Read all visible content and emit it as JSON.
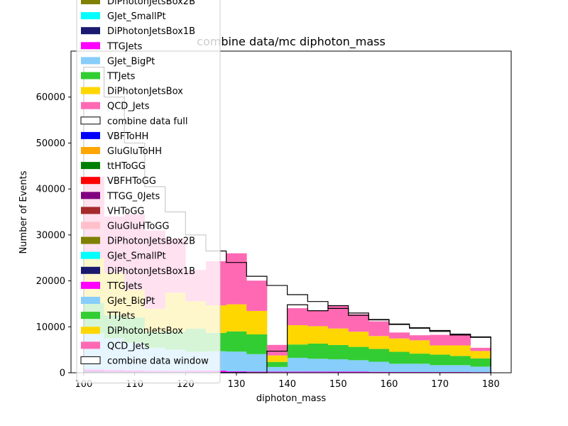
{
  "chart_data": {
    "type": "bar",
    "stacked": true,
    "title": "combine data/mc diphoton_mass",
    "xlabel": "diphoton_mass",
    "ylabel": "Number of Events",
    "xlim": [
      97.5,
      184.0
    ],
    "ylim": [
      0,
      70000
    ],
    "xticks": [
      100,
      110,
      120,
      130,
      140,
      150,
      160,
      170,
      180
    ],
    "yticks": [
      0,
      10000,
      20000,
      30000,
      40000,
      50000,
      60000
    ],
    "bins": [
      100,
      104,
      108,
      112,
      116,
      120,
      124,
      128,
      132,
      136,
      140,
      144,
      148,
      152,
      156,
      160,
      164,
      168,
      172,
      176,
      180
    ],
    "legend_position": "top-left",
    "legend": [
      {
        "label": "DiPhotonJetsBox2B",
        "color": "#808000",
        "kind": "fill"
      },
      {
        "label": "GJet_SmallPt",
        "color": "#00ffff",
        "kind": "fill"
      },
      {
        "label": "DiPhotonJetsBox1B",
        "color": "#191970",
        "kind": "fill"
      },
      {
        "label": "TTGJets",
        "color": "#ff00ff",
        "kind": "fill"
      },
      {
        "label": "GJet_BigPt",
        "color": "#87cefa",
        "kind": "fill"
      },
      {
        "label": "TTJets",
        "color": "#32cd32",
        "kind": "fill"
      },
      {
        "label": "DiPhotonJetsBox",
        "color": "#ffd700",
        "kind": "fill"
      },
      {
        "label": "QCD_Jets",
        "color": "#ff69b4",
        "kind": "fill"
      },
      {
        "label": "combine data full",
        "color": "#000000",
        "kind": "step"
      },
      {
        "label": "VBFToHH",
        "color": "#0000ff",
        "kind": "fill"
      },
      {
        "label": "GluGluToHH",
        "color": "#ffa500",
        "kind": "fill"
      },
      {
        "label": "ttHToGG",
        "color": "#008000",
        "kind": "fill"
      },
      {
        "label": "VBFHToGG",
        "color": "#ff0000",
        "kind": "fill"
      },
      {
        "label": "TTGG_0Jets",
        "color": "#800080",
        "kind": "fill"
      },
      {
        "label": "VHToGG",
        "color": "#a52a2a",
        "kind": "fill"
      },
      {
        "label": "GluGluHToGG",
        "color": "#ffc0cb",
        "kind": "fill"
      },
      {
        "label": "DiPhotonJetsBox2B",
        "color": "#808000",
        "kind": "fill"
      },
      {
        "label": "GJet_SmallPt",
        "color": "#00ffff",
        "kind": "fill"
      },
      {
        "label": "DiPhotonJetsBox1B",
        "color": "#191970",
        "kind": "fill"
      },
      {
        "label": "TTGJets",
        "color": "#ff00ff",
        "kind": "fill"
      },
      {
        "label": "GJet_BigPt",
        "color": "#87cefa",
        "kind": "fill"
      },
      {
        "label": "TTJets",
        "color": "#32cd32",
        "kind": "fill"
      },
      {
        "label": "DiPhotonJetsBox",
        "color": "#ffd700",
        "kind": "fill"
      },
      {
        "label": "QCD_Jets",
        "color": "#ff69b4",
        "kind": "fill"
      },
      {
        "label": "combine data window",
        "color": "#000000",
        "kind": "step"
      }
    ],
    "mc_stack": [
      {
        "name": "DiPhotonJetsBox1B",
        "color": "#191970",
        "values": [
          300,
          250,
          220,
          200,
          190,
          180,
          170,
          150,
          100,
          110,
          100,
          90,
          80,
          80,
          70,
          60,
          60,
          50,
          50,
          50
        ]
      },
      {
        "name": "TTGJets",
        "color": "#ff00ff",
        "values": [
          400,
          350,
          300,
          250,
          230,
          300,
          300,
          150,
          150,
          150,
          150,
          150,
          150,
          150,
          120,
          100,
          100,
          100,
          100,
          80
        ]
      },
      {
        "name": "GJet_BigPt",
        "color": "#87cefa",
        "values": [
          8000,
          6900,
          6000,
          5000,
          4600,
          4100,
          4200,
          4300,
          3800,
          1000,
          3000,
          2800,
          2700,
          2500,
          2200,
          1800,
          1800,
          1500,
          1500,
          1200
        ]
      },
      {
        "name": "TTJets",
        "color": "#32cd32",
        "values": [
          6500,
          5000,
          5500,
          3500,
          4000,
          5000,
          4000,
          4400,
          4300,
          1100,
          2900,
          3300,
          3100,
          2900,
          2800,
          2600,
          2200,
          2300,
          2000,
          1800
        ]
      },
      {
        "name": "DiPhotonJetsBox",
        "color": "#ffd700",
        "values": [
          9800,
          9200,
          6000,
          5000,
          8400,
          6000,
          6000,
          5900,
          5100,
          1400,
          4200,
          3800,
          3600,
          3300,
          2800,
          2900,
          2900,
          2000,
          2300,
          1600
        ]
      },
      {
        "name": "QCD_Jets",
        "color": "#ff69b4",
        "values": [
          17700,
          12300,
          16500,
          17000,
          11800,
          6800,
          9600,
          11100,
          6600,
          2300,
          3700,
          3400,
          4900,
          3800,
          3200,
          1300,
          1100,
          2300,
          2400,
          700
        ]
      }
    ],
    "data_full": [
      66500,
      60000,
      50000,
      40500,
      35000,
      30000,
      26500,
      24000,
      21000,
      19000,
      17000,
      15500,
      14000,
      12500,
      11500,
      10500,
      9800,
      9000,
      8200,
      7800,
      7200
    ],
    "data_window": [
      0,
      0,
      0,
      0,
      0,
      0,
      0,
      0,
      0,
      4700,
      14800,
      13500,
      14600,
      13000,
      11600,
      10600,
      9700,
      9200,
      8400,
      7700,
      7100
    ]
  }
}
